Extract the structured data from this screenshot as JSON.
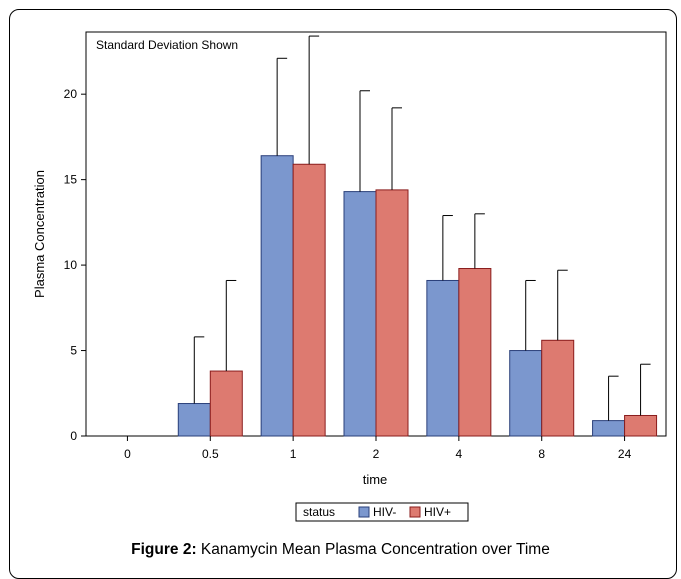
{
  "chart_data": {
    "type": "bar",
    "annotation": "Standard Deviation Shown",
    "xlabel": "time",
    "ylabel": "Plasma Concentration",
    "categories": [
      "0",
      "0.5",
      "1",
      "2",
      "4",
      "8",
      "24"
    ],
    "ylim": [
      0,
      24
    ],
    "yticks": [
      0,
      5,
      10,
      15,
      20
    ],
    "grid": false,
    "legend_title": "status",
    "legend_position": "bottom-center",
    "series": [
      {
        "name": "HIV-",
        "color": "#7b97ce",
        "values": [
          0,
          1.9,
          16.4,
          14.3,
          9.1,
          5.0,
          0.9
        ],
        "sd": [
          0,
          3.9,
          5.7,
          5.9,
          3.8,
          4.1,
          2.6
        ]
      },
      {
        "name": "HIV+",
        "color": "#dd7a70",
        "values": [
          0,
          3.8,
          15.9,
          14.4,
          9.8,
          5.6,
          1.2
        ],
        "sd": [
          0,
          5.3,
          7.5,
          4.8,
          3.2,
          4.1,
          3.0
        ]
      }
    ]
  },
  "caption": {
    "label": "Figure 2:",
    "text": "Kanamycin Mean Plasma Concentration over Time"
  }
}
